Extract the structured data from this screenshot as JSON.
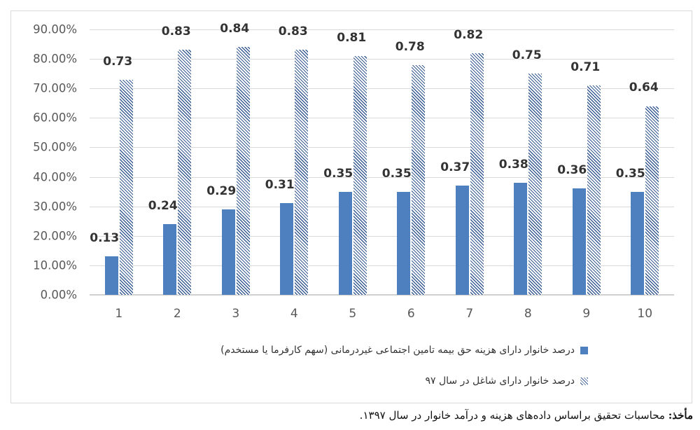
{
  "chart_data": {
    "type": "bar",
    "title": "",
    "xlabel": "",
    "ylabel": "",
    "ylim": [
      0,
      0.9
    ],
    "y_tick_labels": [
      "0.00%",
      "10.00%",
      "20.00%",
      "30.00%",
      "40.00%",
      "50.00%",
      "60.00%",
      "70.00%",
      "80.00%",
      "90.00%"
    ],
    "grid": true,
    "legend_position": "bottom",
    "categories": [
      "1",
      "2",
      "3",
      "4",
      "5",
      "6",
      "7",
      "8",
      "9",
      "10"
    ],
    "series": [
      {
        "name": "درصد خانوار دارای هزینه حق بیمه تامین اجتماعی غیردرمانی (سهم کارفرما یا مستخدم)",
        "style": "solid",
        "color": "#4e7fbe",
        "values": [
          0.13,
          0.24,
          0.29,
          0.31,
          0.35,
          0.35,
          0.37,
          0.38,
          0.36,
          0.35
        ],
        "labels": [
          "0.13",
          "0.24",
          "0.29",
          "0.31",
          "0.35",
          "0.35",
          "0.37",
          "0.38",
          "0.36",
          "0.35"
        ]
      },
      {
        "name": "درصد خانوار دارای شاغل در سال ۹۷",
        "style": "hatched",
        "color": "#3a5d93",
        "values": [
          0.73,
          0.83,
          0.84,
          0.83,
          0.81,
          0.78,
          0.82,
          0.75,
          0.71,
          0.64
        ],
        "labels": [
          "0.73",
          "0.83",
          "0.84",
          "0.83",
          "0.81",
          "0.78",
          "0.82",
          "0.75",
          "0.71",
          "0.64"
        ]
      }
    ]
  },
  "legend": {
    "items": [
      "درصد خانوار دارای هزینه حق بیمه تامین اجتماعی غیردرمانی (سهم کارفرما یا مستخدم)",
      "درصد خانوار دارای شاغل در سال ۹۷"
    ]
  },
  "source": {
    "label": "مأخذ:",
    "text": "محاسبات تحقیق براساس داده‌های هزینه و درآمد خانوار در سال ۱۳۹۷."
  }
}
